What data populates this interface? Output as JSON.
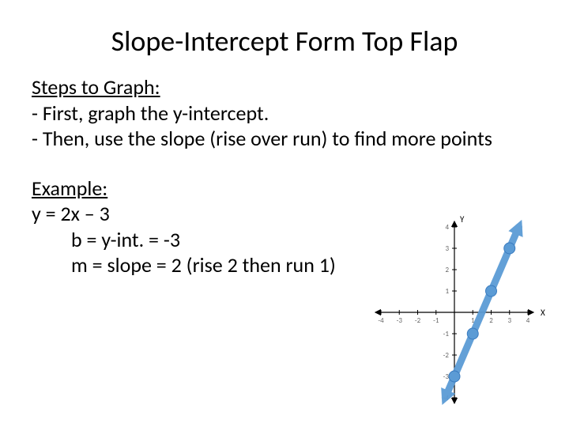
{
  "title": "Slope-Intercept Form Top Flap",
  "steps": {
    "heading": "Steps to Graph:",
    "line1": "- First, graph the y-intercept.",
    "line2": "- Then, use the slope (rise over run) to find more points"
  },
  "example": {
    "heading": "Example:",
    "equation": "y = 2x – 3",
    "b_line": "b = y-int. = -3",
    "m_line": "m = slope = 2 (rise 2 then run 1)"
  },
  "graph": {
    "xlim": [
      -4,
      4
    ],
    "ylim": [
      -4,
      4
    ],
    "xtick_step": 1,
    "ytick_step": 1,
    "axis_color": "#000000",
    "tick_label_color": "#666666",
    "tick_label_fontsize": 9,
    "axis_label_color": "#000000",
    "x_label": "X",
    "y_label": "Y",
    "line": {
      "color": "#5b9bd5",
      "width": 9,
      "p1": [
        -0.5,
        -4
      ],
      "p2": [
        3.5,
        4
      ],
      "arrows": true
    },
    "points": {
      "color": "#5b9bd5",
      "radius": 7,
      "coords": [
        [
          0,
          -3
        ],
        [
          1,
          -1
        ],
        [
          2,
          1
        ],
        [
          3,
          3
        ]
      ]
    }
  },
  "colors": {
    "background": "#ffffff",
    "text": "#000000"
  },
  "typography": {
    "title_fontsize": 36,
    "body_fontsize": 26,
    "font_family": "Calibri"
  }
}
